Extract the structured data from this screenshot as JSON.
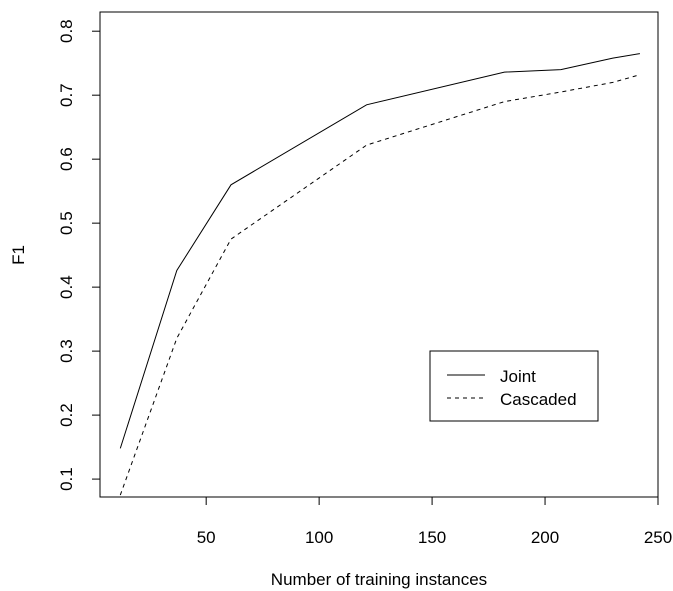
{
  "chart_data": {
    "type": "line",
    "title": "",
    "xlabel": "Number of training instances",
    "ylabel": "F1",
    "xlim": [
      3,
      250
    ],
    "ylim": [
      0.072,
      0.83
    ],
    "xticks": [
      "50",
      "100",
      "150",
      "200",
      "250"
    ],
    "yticks": [
      "0.1",
      "0.2",
      "0.3",
      "0.4",
      "0.5",
      "0.6",
      "0.7",
      "0.8"
    ],
    "grid": false,
    "legend_position": "bottom-right",
    "series": [
      {
        "name": "Joint",
        "line_style": "solid",
        "x": [
          12,
          37,
          61,
          121,
          182,
          207,
          230,
          242
        ],
        "y": [
          0.148,
          0.426,
          0.56,
          0.685,
          0.736,
          0.74,
          0.758,
          0.765
        ]
      },
      {
        "name": "Cascaded",
        "line_style": "dashed",
        "x": [
          12,
          37,
          61,
          121,
          182,
          207,
          230,
          242
        ],
        "y": [
          0.075,
          0.32,
          0.475,
          0.622,
          0.69,
          0.705,
          0.72,
          0.732
        ]
      }
    ]
  }
}
